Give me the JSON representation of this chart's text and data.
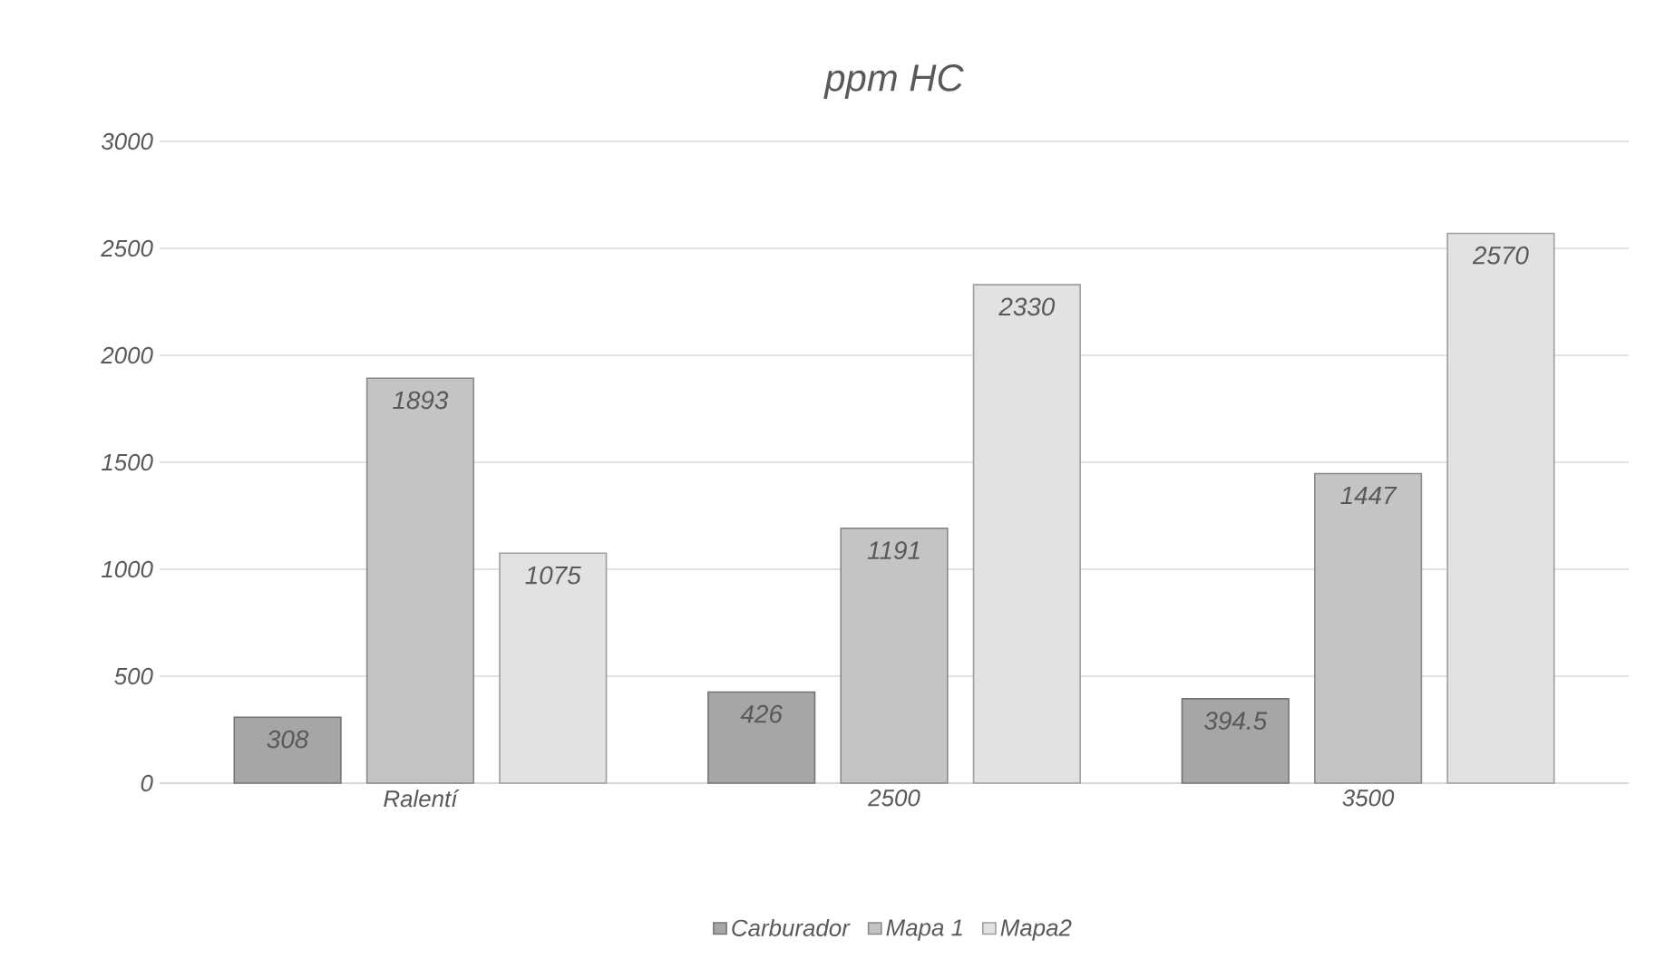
{
  "chart_data": {
    "type": "bar",
    "title": "ppm HC",
    "categories": [
      "Ralentí",
      "2500",
      "3500"
    ],
    "series": [
      {
        "name": "Carburador",
        "color": "#a6a6a6",
        "values": [
          308,
          426,
          394.5
        ]
      },
      {
        "name": "Mapa 1",
        "color": "#c4c4c4",
        "values": [
          1893,
          1191,
          1447
        ]
      },
      {
        "name": "Mapa2",
        "color": "#e2e2e2",
        "values": [
          1075,
          2330,
          2570
        ]
      }
    ],
    "ylim": [
      0,
      3000
    ],
    "yticks": [
      0,
      500,
      1000,
      1500,
      2000,
      2500,
      3000
    ],
    "grid": "y",
    "legend": "bottom",
    "data_labels": true
  }
}
